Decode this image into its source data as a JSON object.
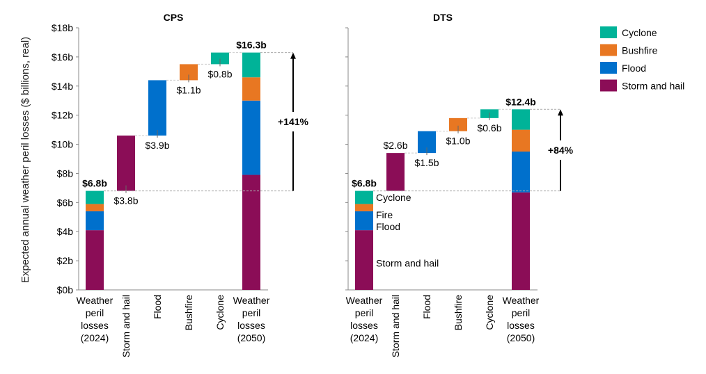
{
  "colors": {
    "storm": "#8B0D57",
    "flood": "#0070CC",
    "bushfire": "#E87722",
    "cyclone": "#00B398"
  },
  "legend": [
    {
      "key": "cyclone",
      "label": "Cyclone"
    },
    {
      "key": "bushfire",
      "label": "Bushfire"
    },
    {
      "key": "flood",
      "label": "Flood"
    },
    {
      "key": "storm",
      "label": "Storm and hail"
    }
  ],
  "chart_data": [
    {
      "type": "bar",
      "subtype": "waterfall",
      "title": "CPS",
      "ylabel": "Expected annual weather peril losses ($ billions, real)",
      "ylim": [
        0,
        18
      ],
      "yticks": [
        "$0b",
        "$2b",
        "$4b",
        "$6b",
        "$8b",
        "$10b",
        "$12b",
        "$14b",
        "$16b",
        "$18b"
      ],
      "categories": [
        [
          "Weather",
          "peril",
          "losses",
          "(2024)"
        ],
        [
          "Storm and hail"
        ],
        [
          "Flood"
        ],
        [
          "Bushfire"
        ],
        [
          "Cyclone"
        ],
        [
          "Weather",
          "peril",
          "losses",
          "(2050)"
        ]
      ],
      "start_stack": {
        "storm": 4.1,
        "flood": 1.3,
        "bushfire": 0.5,
        "cyclone": 0.9,
        "total_label": "$6.8b"
      },
      "increments": [
        {
          "key": "storm",
          "from": 6.8,
          "to": 10.6,
          "label": "$3.8b"
        },
        {
          "key": "flood",
          "from": 10.6,
          "to": 14.4,
          "label": "$3.9b"
        },
        {
          "key": "bushfire",
          "from": 14.4,
          "to": 15.5,
          "label": "$1.1b"
        },
        {
          "key": "cyclone",
          "from": 15.5,
          "to": 16.3,
          "label": "$0.8b"
        }
      ],
      "end_stack": {
        "storm": 7.9,
        "flood": 5.1,
        "bushfire": 1.6,
        "cyclone": 1.7,
        "total_label": "$16.3b"
      },
      "change": {
        "from": 6.8,
        "to": 16.3,
        "label": "+141%"
      }
    },
    {
      "type": "bar",
      "subtype": "waterfall",
      "title": "DTS",
      "ylim": [
        0,
        18
      ],
      "categories": [
        [
          "Weather",
          "peril",
          "losses",
          "(2024)"
        ],
        [
          "Storm and hail"
        ],
        [
          "Flood"
        ],
        [
          "Bushfire"
        ],
        [
          "Cyclone"
        ],
        [
          "Weather",
          "peril",
          "losses",
          "(2050)"
        ]
      ],
      "start_stack": {
        "storm": 4.1,
        "flood": 1.3,
        "bushfire": 0.5,
        "cyclone": 0.9,
        "total_label": "$6.8b"
      },
      "stack_annotations": [
        "Cyclone",
        "Fire",
        "Flood",
        "Storm and hail"
      ],
      "increments": [
        {
          "key": "storm",
          "from": 6.8,
          "to": 9.4,
          "label": "$2.6b"
        },
        {
          "key": "flood",
          "from": 9.4,
          "to": 10.9,
          "label": "$1.5b"
        },
        {
          "key": "bushfire",
          "from": 10.9,
          "to": 11.8,
          "label": "$1.0b"
        },
        {
          "key": "cyclone",
          "from": 11.8,
          "to": 12.4,
          "label": "$0.6b"
        }
      ],
      "end_stack": {
        "storm": 6.7,
        "flood": 2.8,
        "bushfire": 1.5,
        "cyclone": 1.4,
        "total_label": "$12.4b"
      },
      "change": {
        "from": 6.8,
        "to": 12.4,
        "label": "+84%"
      }
    }
  ]
}
